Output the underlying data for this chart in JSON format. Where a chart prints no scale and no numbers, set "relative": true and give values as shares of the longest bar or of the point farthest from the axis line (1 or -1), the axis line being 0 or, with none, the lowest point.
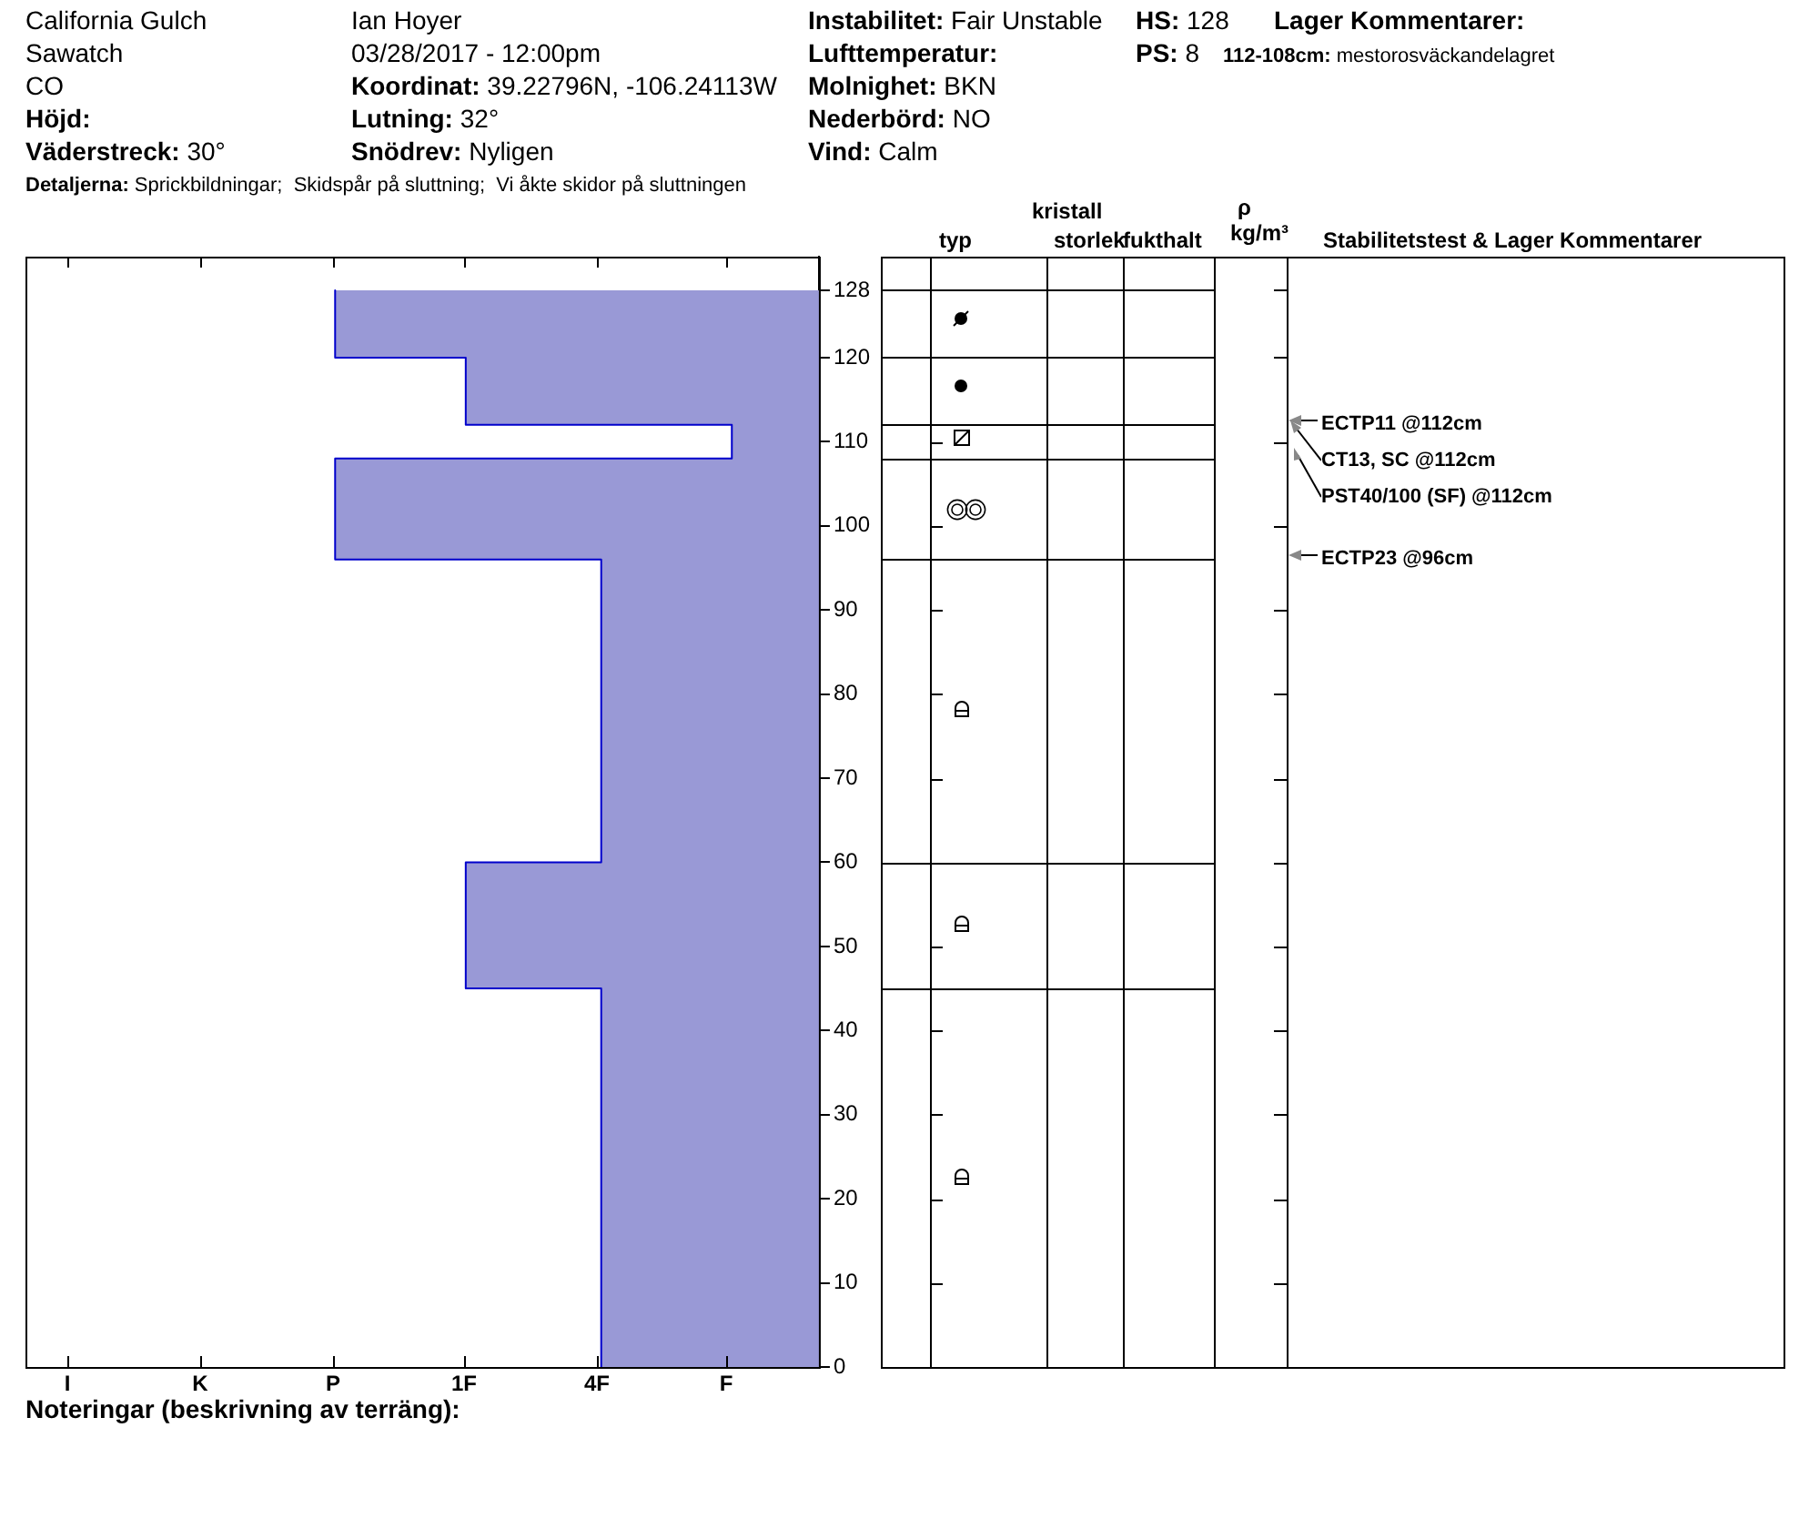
{
  "chart_data": {
    "type": "area",
    "orientation": "horizontal",
    "relative": true,
    "color": "#9999d6",
    "x": [
      0,
      45,
      45,
      60,
      60,
      96,
      96,
      108,
      108,
      112,
      112,
      120,
      120,
      128
    ],
    "values": [
      -0.45,
      -0.45,
      -0.73,
      -0.73,
      -0.45,
      -0.45,
      -1,
      -1,
      -0.18,
      -0.18,
      -0.73,
      -0.73,
      -1,
      -1
    ],
    "ylim": [
      0,
      132
    ],
    "yticks": [
      0,
      10,
      20,
      30,
      40,
      50,
      60,
      70,
      80,
      90,
      100,
      110,
      120,
      128
    ],
    "annotations": [
      "California Gulch",
      "Sawatch",
      "CO",
      "Höjd:",
      "Väderstreck: 30°",
      "Detaljerna: Sprickbildningar;  Skidspår på sluttning;  Vi åkte skidor på sluttningen",
      "Ian Hoyer",
      "03/28/2017 - 12:00pm",
      "Koordinat: 39.22796N, -106.24113W",
      "Lutning: 32°",
      "Snödrev: Nyligen",
      "Instabilitet: Fair Unstable",
      "Lufttemperatur:",
      "Molnighet: BKN",
      "Nederbörd: NO",
      "Vind: Calm",
      "HS: 128",
      "PS: 8",
      "Lager Kommentarer:",
      "112-108cm: mestorosväckandelagret",
      "typ",
      "kristall",
      "storlek",
      "fukthalt",
      "ρ",
      "kg/m³",
      "Stabilitetstest & Lager Kommentarer",
      "Noteringar (beskrivning av terräng):",
      "ECTP11 @112cm",
      "CT13, SC @112cm",
      "PST40/100 (SF) @112cm",
      "ECTP23 @96cm",
      "I",
      "K",
      "P",
      "1F",
      "4F",
      "F"
    ]
  }
}
